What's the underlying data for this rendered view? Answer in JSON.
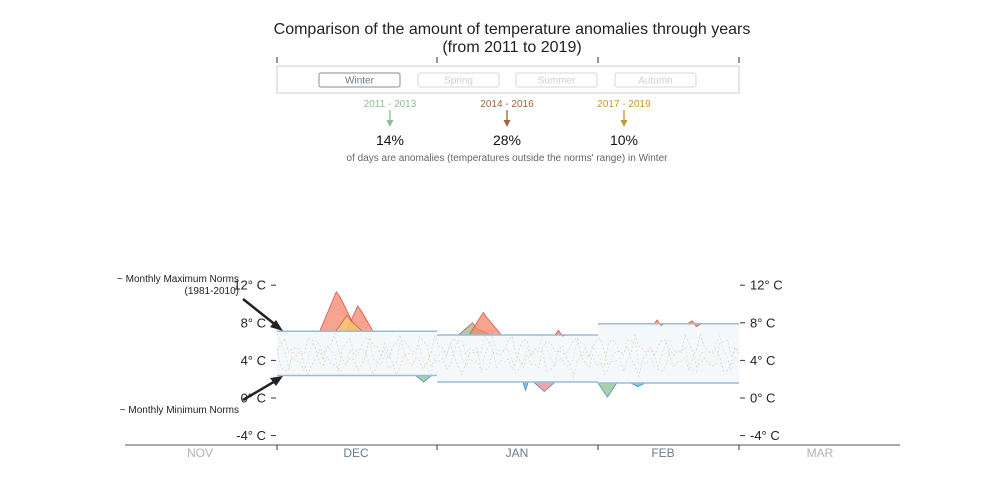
{
  "header": {
    "title_line1": "Comparison of the amount of temperature anomalies through years",
    "title_line2": "(from 2011 to 2019)"
  },
  "season_buttons": [
    {
      "label": "Winter",
      "active": true
    },
    {
      "label": "Spring",
      "active": false
    },
    {
      "label": "Summer",
      "active": false
    },
    {
      "label": "Autumn",
      "active": false
    }
  ],
  "periods": [
    {
      "label": "2011 - 2013",
      "percent": "14%",
      "color": "#8fbf8f"
    },
    {
      "label": "2014 - 2016",
      "percent": "28%",
      "color": "#a0633a"
    },
    {
      "label": "2017 - 2019",
      "percent": "10%",
      "color": "#c49a2a"
    }
  ],
  "note": "of days are anomalies (temperatures outside the norms' range) in Winter",
  "annotations": {
    "max_norms": "~ Monthly Maximum Norms",
    "max_norms_period": "(1981-2010)",
    "min_norms": "~ Monthly Minimum Norms"
  },
  "chart_data": {
    "type": "area",
    "y_ticks": [
      "12° C",
      "8° C",
      "4° C",
      "0° C",
      "-4° C"
    ],
    "y_tick_values": [
      12,
      8,
      4,
      0,
      -4
    ],
    "ylim": [
      -5,
      13
    ],
    "months": [
      {
        "label": "NOV",
        "active": false
      },
      {
        "label": "DEC",
        "active": true
      },
      {
        "label": "JAN",
        "active": true
      },
      {
        "label": "FEB",
        "active": true
      },
      {
        "label": "MAR",
        "active": false
      }
    ],
    "norms": [
      {
        "month": "DEC",
        "max": 7.1,
        "min": 2.4
      },
      {
        "month": "JAN",
        "max": 6.7,
        "min": 1.7
      },
      {
        "month": "FEB",
        "max": 7.9,
        "min": 1.6
      }
    ],
    "anomalies_above": [
      {
        "period": "2014 - 2016",
        "month": "DEC",
        "day_start": 8,
        "day_end": 15,
        "peak": 11.3,
        "color": "#f4856a"
      },
      {
        "period": "2014 - 2016",
        "month": "DEC",
        "day_start": 13,
        "day_end": 18,
        "peak": 9.8,
        "color": "#f4856a"
      },
      {
        "period": "2011 - 2013",
        "month": "DEC",
        "day_start": 11,
        "day_end": 16,
        "peak": 8.8,
        "color": "#f6cf6e"
      },
      {
        "period": "2011 - 2013",
        "month": "JAN",
        "day_start": 4,
        "day_end": 10,
        "peak": 8.0,
        "color": "#8fbf8f"
      },
      {
        "period": "2014 - 2016",
        "month": "JAN",
        "day_start": 6,
        "day_end": 12,
        "peak": 9.1,
        "color": "#f4856a"
      },
      {
        "period": "2014 - 2016",
        "month": "JAN",
        "day_start": 22,
        "day_end": 24,
        "peak": 7.2,
        "color": "#f4856a"
      },
      {
        "period": "2014 - 2016",
        "month": "FEB",
        "day_start": 12,
        "day_end": 14,
        "peak": 8.3,
        "color": "#f4856a"
      },
      {
        "period": "2014 - 2016",
        "month": "FEB",
        "day_start": 19,
        "day_end": 22,
        "peak": 8.2,
        "color": "#f4856a"
      }
    ],
    "anomalies_below": [
      {
        "period": "2011 - 2013",
        "month": "DEC",
        "day_start": 26,
        "day_end": 29,
        "low": 1.7,
        "color": "#8fbf8f"
      },
      {
        "period": "2011 - 2013",
        "month": "JAN",
        "day_start": 16,
        "day_end": 17,
        "low": 0.8,
        "color": "#5aaed6"
      },
      {
        "period": "2014 - 2016",
        "month": "JAN",
        "day_start": 18,
        "day_end": 22,
        "low": 0.7,
        "color": "#e88a8a"
      },
      {
        "period": "2011 - 2013",
        "month": "FEB",
        "day_start": 0,
        "day_end": 4,
        "low": 0.1,
        "color": "#8fbf8f"
      },
      {
        "period": "2011 - 2013",
        "month": "FEB",
        "day_start": 7,
        "day_end": 10,
        "low": 1.2,
        "color": "#5aaed6"
      }
    ],
    "colors": {
      "norm_line": "#9cbbd6",
      "norm_band": "#f5f8fb",
      "axis": "#555555",
      "month_active": "#6b7c8c",
      "month_inactive": "#b3b3b3"
    }
  }
}
